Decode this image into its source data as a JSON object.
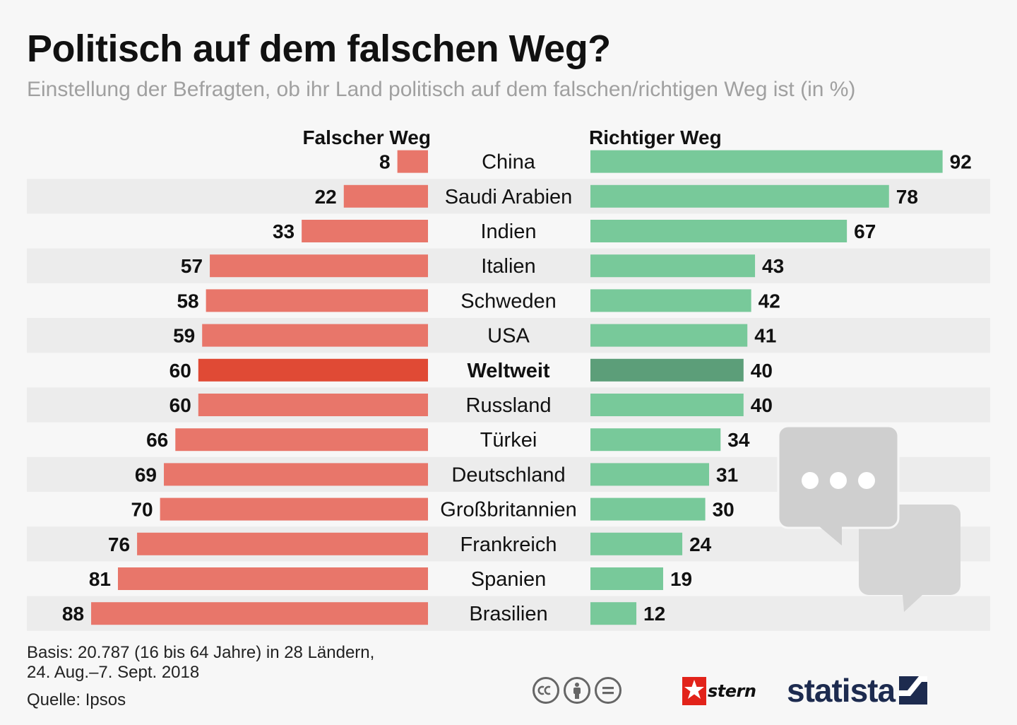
{
  "header": {
    "title": "Politisch auf dem falschen Weg?",
    "subtitle": "Einstellung der Befragten, ob ihr Land politisch auf dem falschen/richtigen Weg ist (in %)"
  },
  "colors": {
    "wrong": "#e8766a",
    "wrong_highlight": "#e04a35",
    "right": "#78c99a",
    "right_highlight": "#5c9e79",
    "row_stripe": "#ececec",
    "text": "#111111",
    "deco_gray": "#d5d5d5"
  },
  "chart_data": {
    "type": "bar",
    "title": "Politisch auf dem falschen Weg?",
    "subtitle": "Einstellung der Befragten, ob ihr Land politisch auf dem falschen/richtigen Weg ist (in %)",
    "unit": "%",
    "xlim": [
      0,
      100
    ],
    "categories": [
      "China",
      "Saudi Arabien",
      "Indien",
      "Italien",
      "Schweden",
      "USA",
      "Weltweit",
      "Russland",
      "Türkei",
      "Deutschland",
      "Großbritannien",
      "Frankreich",
      "Spanien",
      "Brasilien"
    ],
    "highlight": "Weltweit",
    "series": [
      {
        "name": "Falscher Weg",
        "values": [
          8,
          22,
          33,
          57,
          58,
          59,
          60,
          60,
          66,
          69,
          70,
          76,
          81,
          88
        ]
      },
      {
        "name": "Richtiger Weg",
        "values": [
          92,
          78,
          67,
          43,
          42,
          41,
          40,
          40,
          34,
          31,
          30,
          24,
          19,
          12
        ]
      }
    ]
  },
  "footer": {
    "basis_line1": "Basis: 20.787 (16 bis 64 Jahre) in 28 Ländern,",
    "basis_line2": "24. Aug.–7. Sept. 2018",
    "source": "Quelle: Ipsos",
    "cc_icons": [
      "cc-icon",
      "by-person-icon",
      "nd-equals-icon"
    ],
    "stern_label": "stern",
    "statista_label": "statista"
  }
}
